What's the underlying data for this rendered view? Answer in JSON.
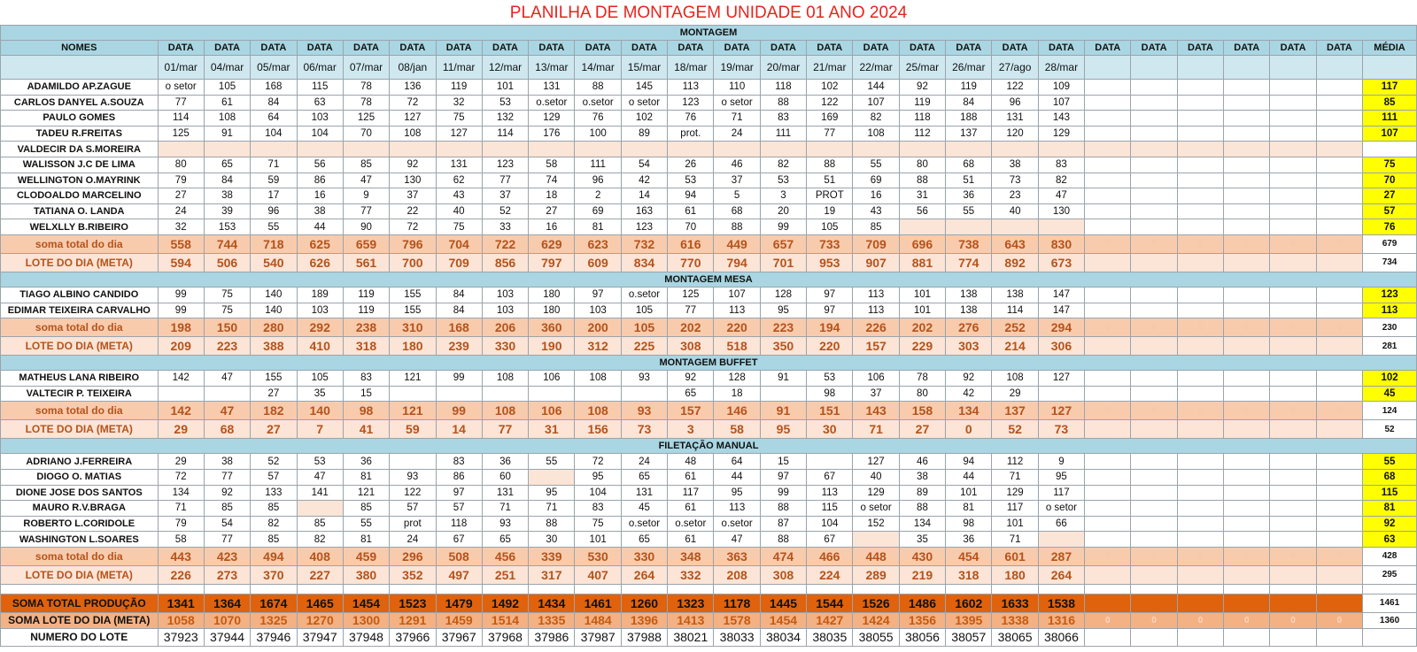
{
  "title": "PLANILHA DE MONTAGEM UNIDADE 01   ANO 2024",
  "header": {
    "names_label": "NOMES",
    "data_label": "DATA",
    "media_label": "MÉDIA",
    "dates": [
      "01/mar",
      "04/mar",
      "05/mar",
      "06/mar",
      "07/mar",
      "08/jan",
      "11/mar",
      "12/mar",
      "13/mar",
      "14/mar",
      "15/mar",
      "18/mar",
      "19/mar",
      "20/mar",
      "21/mar",
      "22/mar",
      "25/mar",
      "26/mar",
      "27/ago",
      "28/mar",
      "",
      "",
      "",
      "",
      "",
      ""
    ]
  },
  "sections": [
    {
      "title": "MONTAGEM",
      "rows": [
        {
          "name": "ADAMILDO AP.ZAGUE",
          "values": [
            "o setor",
            "105",
            "168",
            "115",
            "78",
            "136",
            "119",
            "101",
            "131",
            "88",
            "145",
            "113",
            "110",
            "118",
            "102",
            "144",
            "92",
            "119",
            "122",
            "109"
          ],
          "avg": "117"
        },
        {
          "name": "CARLOS DANYEL A.SOUZA",
          "values": [
            "77",
            "61",
            "84",
            "63",
            "78",
            "72",
            "32",
            "53",
            "o.setor",
            "o.setor",
            "o setor",
            "123",
            "o setor",
            "88",
            "122",
            "107",
            "119",
            "84",
            "96",
            "107"
          ],
          "avg": "85"
        },
        {
          "name": "PAULO GOMES",
          "values": [
            "114",
            "108",
            "64",
            "103",
            "125",
            "127",
            "75",
            "132",
            "129",
            "76",
            "102",
            "76",
            "71",
            "83",
            "169",
            "82",
            "118",
            "188",
            "131",
            "143"
          ],
          "avg": "111"
        },
        {
          "name": "TADEU R.FREITAS",
          "values": [
            "125",
            "91",
            "104",
            "104",
            "70",
            "108",
            "127",
            "114",
            "176",
            "100",
            "89",
            "prot.",
            "24",
            "111",
            "77",
            "108",
            "112",
            "137",
            "120",
            "129"
          ],
          "avg": "107"
        },
        {
          "name": "VALDECIR DA S.MOREIRA",
          "values": [],
          "avg": "",
          "blank": true
        },
        {
          "name": "WALISSON J.C DE LIMA",
          "values": [
            "80",
            "65",
            "71",
            "56",
            "85",
            "92",
            "131",
            "123",
            "58",
            "111",
            "54",
            "26",
            "46",
            "82",
            "88",
            "55",
            "80",
            "68",
            "38",
            "83"
          ],
          "avg": "75"
        },
        {
          "name": "WELLINGTON O.MAYRINK",
          "values": [
            "79",
            "84",
            "59",
            "86",
            "47",
            "130",
            "62",
            "77",
            "74",
            "96",
            "42",
            "53",
            "37",
            "53",
            "51",
            "69",
            "88",
            "51",
            "73",
            "82"
          ],
          "avg": "70"
        },
        {
          "name": "CLODOALDO MARCELINO",
          "values": [
            "27",
            "38",
            "17",
            "16",
            "9",
            "37",
            "43",
            "37",
            "18",
            "2",
            "14",
            "94",
            "5",
            "3",
            "PROT",
            "16",
            "31",
            "36",
            "23",
            "47"
          ],
          "avg": "27"
        },
        {
          "name": "TATIANA O. LANDA",
          "values": [
            "24",
            "39",
            "96",
            "38",
            "77",
            "22",
            "40",
            "52",
            "27",
            "69",
            "163",
            "61",
            "68",
            "20",
            "19",
            "43",
            "56",
            "55",
            "40",
            "130"
          ],
          "avg": "57"
        },
        {
          "name": "WELXLLY B.RIBEIRO",
          "values": [
            "32",
            "153",
            "55",
            "44",
            "90",
            "72",
            "75",
            "33",
            "16",
            "81",
            "123",
            "70",
            "88",
            "99",
            "105",
            "85",
            "",
            "",
            "",
            ""
          ],
          "avg": "76",
          "pinkFrom": 16
        }
      ],
      "soma": {
        "label": "soma total  do dia",
        "values": [
          "558",
          "744",
          "718",
          "625",
          "659",
          "796",
          "704",
          "722",
          "629",
          "623",
          "732",
          "616",
          "449",
          "657",
          "733",
          "709",
          "696",
          "738",
          "643",
          "830"
        ],
        "avg": "679"
      },
      "lote": {
        "label": "LOTE DO DIA (META)",
        "values": [
          "594",
          "506",
          "540",
          "626",
          "561",
          "700",
          "709",
          "856",
          "797",
          "609",
          "834",
          "770",
          "794",
          "701",
          "953",
          "907",
          "881",
          "774",
          "892",
          "673"
        ],
        "avg": "734"
      }
    },
    {
      "title": "MONTAGEM MESA",
      "rows": [
        {
          "name": "TIAGO ALBINO CANDIDO",
          "values": [
            "99",
            "75",
            "140",
            "189",
            "119",
            "155",
            "84",
            "103",
            "180",
            "97",
            "o.setor",
            "125",
            "107",
            "128",
            "97",
            "113",
            "101",
            "138",
            "138",
            "147"
          ],
          "avg": "123"
        },
        {
          "name": "EDIMAR TEIXEIRA CARVALHO",
          "values": [
            "99",
            "75",
            "140",
            "103",
            "119",
            "155",
            "84",
            "103",
            "180",
            "103",
            "105",
            "77",
            "113",
            "95",
            "97",
            "113",
            "101",
            "138",
            "114",
            "147"
          ],
          "avg": "113"
        }
      ],
      "soma": {
        "label": "soma total  do dia",
        "values": [
          "198",
          "150",
          "280",
          "292",
          "238",
          "310",
          "168",
          "206",
          "360",
          "200",
          "105",
          "202",
          "220",
          "223",
          "194",
          "226",
          "202",
          "276",
          "252",
          "294"
        ],
        "avg": "230"
      },
      "lote": {
        "label": "LOTE DO DIA (META)",
        "values": [
          "209",
          "223",
          "388",
          "410",
          "318",
          "180",
          "239",
          "330",
          "190",
          "312",
          "225",
          "308",
          "518",
          "350",
          "220",
          "157",
          "229",
          "303",
          "214",
          "306"
        ],
        "avg": "281"
      }
    },
    {
      "title": "MONTAGEM BUFFET",
      "rows": [
        {
          "name": "MATHEUS LANA RIBEIRO",
          "values": [
            "142",
            "47",
            "155",
            "105",
            "83",
            "121",
            "99",
            "108",
            "106",
            "108",
            "93",
            "92",
            "128",
            "91",
            "53",
            "106",
            "78",
            "92",
            "108",
            "127"
          ],
          "avg": "102"
        },
        {
          "name": "VALTECIR P. TEIXEIRA",
          "values": [
            "",
            "",
            "27",
            "35",
            "15",
            "",
            "",
            "",
            "",
            "",
            "",
            "65",
            "18",
            "",
            "98",
            "37",
            "80",
            "42",
            "29",
            ""
          ],
          "avg": "45"
        }
      ],
      "soma": {
        "label": "soma total  do dia",
        "values": [
          "142",
          "47",
          "182",
          "140",
          "98",
          "121",
          "99",
          "108",
          "106",
          "108",
          "93",
          "157",
          "146",
          "91",
          "151",
          "143",
          "158",
          "134",
          "137",
          "127"
        ],
        "avg": "124"
      },
      "lote": {
        "label": "LOTE DO DIA (META)",
        "values": [
          "29",
          "68",
          "27",
          "7",
          "41",
          "59",
          "14",
          "77",
          "31",
          "156",
          "73",
          "3",
          "58",
          "95",
          "30",
          "71",
          "27",
          "0",
          "52",
          "73"
        ],
        "avg": "52"
      }
    },
    {
      "title": "FILETAÇÃO MANUAL",
      "rows": [
        {
          "name": "ADRIANO J.FERREIRA",
          "values": [
            "29",
            "38",
            "52",
            "53",
            "36",
            "",
            "83",
            "36",
            "55",
            "72",
            "24",
            "48",
            "64",
            "15",
            "",
            "127",
            "46",
            "94",
            "112",
            "9"
          ],
          "avg": "55"
        },
        {
          "name": "DIOGO O. MATIAS",
          "values": [
            "72",
            "77",
            "57",
            "47",
            "81",
            "93",
            "86",
            "60",
            "",
            "95",
            "65",
            "61",
            "44",
            "97",
            "67",
            "40",
            "38",
            "44",
            "71",
            "95"
          ],
          "avg": "68",
          "pinkAt": [
            8
          ]
        },
        {
          "name": "DIONE  JOSE DOS SANTOS",
          "values": [
            "134",
            "92",
            "133",
            "141",
            "121",
            "122",
            "97",
            "131",
            "95",
            "104",
            "131",
            "117",
            "95",
            "99",
            "113",
            "129",
            "89",
            "101",
            "129",
            "117"
          ],
          "avg": "115"
        },
        {
          "name": "MAURO R.V.BRAGA",
          "values": [
            "71",
            "85",
            "85",
            "",
            "85",
            "57",
            "57",
            "71",
            "71",
            "83",
            "45",
            "61",
            "113",
            "88",
            "115",
            "o setor",
            "88",
            "81",
            "117",
            "o setor"
          ],
          "avg": "81",
          "pinkAt": [
            3
          ]
        },
        {
          "name": "ROBERTO L.CORIDOLE",
          "values": [
            "79",
            "54",
            "82",
            "85",
            "55",
            "prot",
            "118",
            "93",
            "88",
            "75",
            "o.setor",
            "o.setor",
            "o.setor",
            "87",
            "104",
            "152",
            "134",
            "98",
            "101",
            "66"
          ],
          "avg": "92"
        },
        {
          "name": "WASHINGTON L.SOARES",
          "values": [
            "58",
            "77",
            "85",
            "82",
            "81",
            "24",
            "67",
            "65",
            "30",
            "101",
            "65",
            "61",
            "47",
            "88",
            "67",
            "",
            "35",
            "36",
            "71",
            ""
          ],
          "avg": "63",
          "pinkAt": [
            15,
            19
          ]
        }
      ],
      "soma": {
        "label": "soma total  do dia",
        "values": [
          "443",
          "423",
          "494",
          "408",
          "459",
          "296",
          "508",
          "456",
          "339",
          "530",
          "330",
          "348",
          "363",
          "474",
          "466",
          "448",
          "430",
          "454",
          "601",
          "287"
        ],
        "avg": "428"
      },
      "lote": {
        "label": "LOTE DO DIA (META)",
        "values": [
          "226",
          "273",
          "370",
          "227",
          "380",
          "352",
          "497",
          "251",
          "317",
          "407",
          "264",
          "332",
          "208",
          "308",
          "224",
          "289",
          "219",
          "318",
          "180",
          "264"
        ],
        "avg": "295"
      }
    }
  ],
  "totals": {
    "producao": {
      "label": "SOMA TOTAL PRODUÇÃO",
      "values": [
        "1341",
        "1364",
        "1674",
        "1465",
        "1454",
        "1523",
        "1479",
        "1492",
        "1434",
        "1461",
        "1260",
        "1323",
        "1178",
        "1445",
        "1544",
        "1526",
        "1486",
        "1602",
        "1633",
        "1538"
      ],
      "avg": "1461"
    },
    "lote": {
      "label": "SOMA LOTE DO DIA (META)",
      "values": [
        "1058",
        "1070",
        "1325",
        "1270",
        "1300",
        "1291",
        "1459",
        "1514",
        "1335",
        "1484",
        "1396",
        "1413",
        "1578",
        "1454",
        "1427",
        "1424",
        "1356",
        "1395",
        "1338",
        "1316"
      ],
      "avg": "1360"
    },
    "numero": {
      "label": "NUMERO DO LOTE",
      "values": [
        "37923",
        "37944",
        "37946",
        "37947",
        "37948",
        "37966",
        "37967",
        "37968",
        "37986",
        "37987",
        "37988",
        "38021",
        "38033",
        "38034",
        "38035",
        "38055",
        "38056",
        "38057",
        "38065",
        "38066"
      ]
    }
  },
  "zero_value": "0",
  "colors": {
    "title": "#e8231c",
    "section": "#a9d6e2",
    "soma": "#f8cbad",
    "lote": "#fce4d6",
    "media": "#ffff00",
    "total": "#e0620d",
    "total_lote": "#f4b183"
  }
}
